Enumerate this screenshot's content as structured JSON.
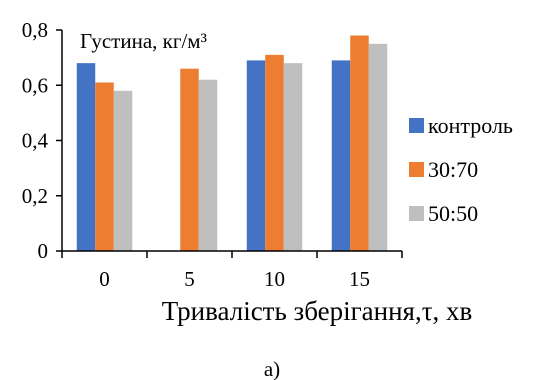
{
  "chart_data": {
    "type": "bar",
    "title": "Густина, кг/м³",
    "xlabel": "Тривалість зберігання,τ, хв",
    "ylabel": "",
    "categories": [
      "0",
      "5",
      "10",
      "15"
    ],
    "series": [
      {
        "name": "контроль",
        "color": "#4472C4",
        "values": [
          0.68,
          null,
          0.69,
          0.69
        ]
      },
      {
        "name": "30:70",
        "color": "#ED7D31",
        "values": [
          0.61,
          0.66,
          0.71,
          0.78
        ]
      },
      {
        "name": "50:50",
        "color": "#BFBFBF",
        "values": [
          0.58,
          0.62,
          0.68,
          0.75
        ]
      }
    ],
    "ylim": [
      0,
      0.8
    ],
    "yticks": [
      "0",
      "0,2",
      "0,4",
      "0,6",
      "0,8"
    ],
    "ytick_values": [
      0,
      0.2,
      0.4,
      0.6,
      0.8
    ],
    "grid": false,
    "legend": "right"
  },
  "caption": "а)"
}
